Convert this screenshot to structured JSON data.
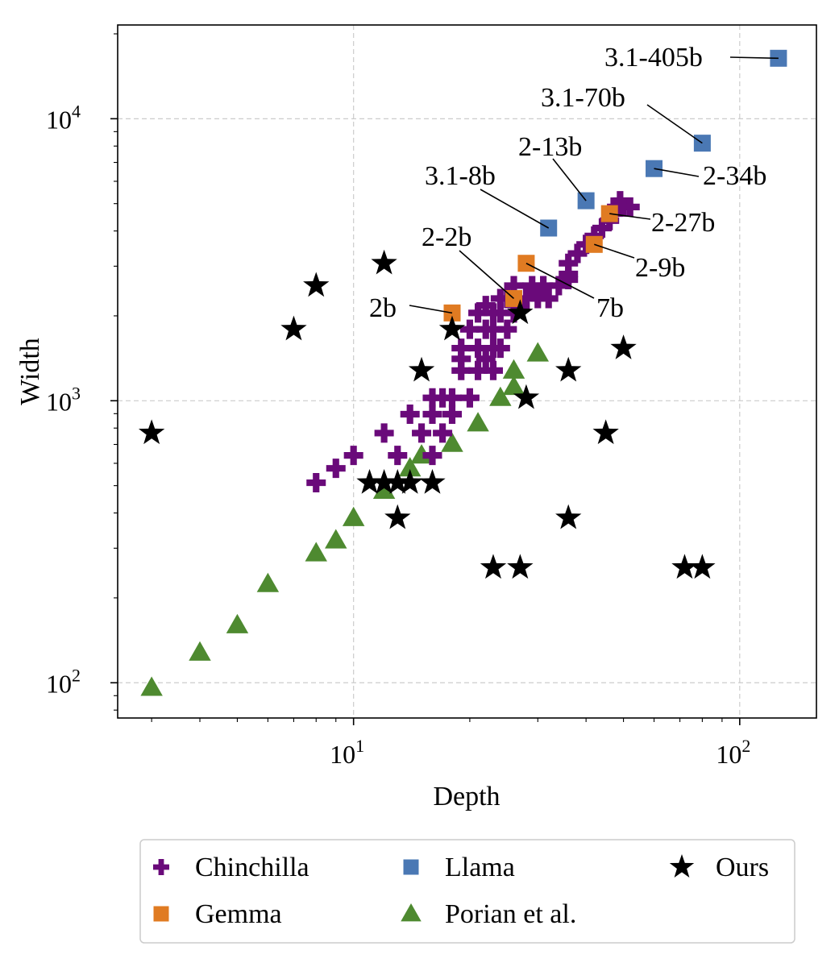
{
  "chart_data": {
    "type": "scatter",
    "xlabel": "Depth",
    "ylabel": "Width",
    "xscale": "log",
    "yscale": "log",
    "xlim": [
      2.45,
      158
    ],
    "ylim": [
      75,
      21500
    ],
    "x_ticks": [
      {
        "value": 10,
        "base": "10",
        "exp": "1"
      },
      {
        "value": 100,
        "base": "10",
        "exp": "2"
      }
    ],
    "y_ticks": [
      {
        "value": 100,
        "base": "10",
        "exp": "2"
      },
      {
        "value": 1000,
        "base": "10",
        "exp": "3"
      },
      {
        "value": 10000,
        "base": "10",
        "exp": "4"
      }
    ],
    "grid": true,
    "legend_position": "below",
    "series": [
      {
        "name": "Chinchilla",
        "color": "#6a0a7a",
        "marker": "plus",
        "points": [
          [
            8,
            512
          ],
          [
            9,
            576
          ],
          [
            10,
            640
          ],
          [
            12,
            768
          ],
          [
            13,
            640
          ],
          [
            14,
            896
          ],
          [
            15,
            768
          ],
          [
            16,
            1024
          ],
          [
            16,
            896
          ],
          [
            16,
            640
          ],
          [
            17,
            768
          ],
          [
            17,
            1024
          ],
          [
            18,
            896
          ],
          [
            18,
            1024
          ],
          [
            19,
            1280
          ],
          [
            19,
            1408
          ],
          [
            19,
            1536
          ],
          [
            20,
            1024
          ],
          [
            20,
            1792
          ],
          [
            21,
            1280
          ],
          [
            21,
            1536
          ],
          [
            21,
            2048
          ],
          [
            22,
            1408
          ],
          [
            22,
            1792
          ],
          [
            22,
            2176
          ],
          [
            23,
            1280
          ],
          [
            23,
            1536
          ],
          [
            23,
            1792
          ],
          [
            23,
            2048
          ],
          [
            24,
            1536
          ],
          [
            24,
            2048
          ],
          [
            24,
            2304
          ],
          [
            25,
            1792
          ],
          [
            25,
            2304
          ],
          [
            26,
            2048
          ],
          [
            26,
            2560
          ],
          [
            27,
            2176
          ],
          [
            28,
            2304
          ],
          [
            29,
            2560
          ],
          [
            30,
            2304
          ],
          [
            31,
            2560
          ],
          [
            32,
            2304
          ],
          [
            34,
            2560
          ],
          [
            36,
            2688
          ],
          [
            36,
            2816
          ],
          [
            36,
            3072
          ],
          [
            38,
            3328
          ],
          [
            40,
            3584
          ],
          [
            42,
            3840
          ],
          [
            44,
            4096
          ],
          [
            46,
            4352
          ],
          [
            47,
            4608
          ],
          [
            48,
            4864
          ],
          [
            49,
            5120
          ],
          [
            50,
            4864
          ],
          [
            52,
            4864
          ]
        ]
      },
      {
        "name": "Gemma",
        "color": "#e07b22",
        "marker": "square",
        "points": [
          {
            "x": 18,
            "y": 2048,
            "label": "2b"
          },
          {
            "x": 26,
            "y": 2304,
            "label": "2-2b"
          },
          {
            "x": 28,
            "y": 3072,
            "label": "7b"
          },
          {
            "x": 42,
            "y": 3584,
            "label": "2-9b"
          },
          {
            "x": 46,
            "y": 4608,
            "label": "2-27b"
          }
        ]
      },
      {
        "name": "Llama",
        "color": "#4a78b4",
        "marker": "square",
        "points": [
          {
            "x": 32,
            "y": 4096,
            "label": "3.1-8b"
          },
          {
            "x": 40,
            "y": 5120,
            "label": "2-13b"
          },
          {
            "x": 60,
            "y": 6656,
            "label": "2-34b"
          },
          {
            "x": 80,
            "y": 8192,
            "label": "3.1-70b"
          },
          {
            "x": 126,
            "y": 16384,
            "label": "3.1-405b"
          }
        ]
      },
      {
        "name": "Porian et al.",
        "color": "#4e8a30",
        "marker": "triangle",
        "points": [
          [
            3,
            96
          ],
          [
            4,
            128
          ],
          [
            5,
            160
          ],
          [
            6,
            224
          ],
          [
            8,
            288
          ],
          [
            9,
            320
          ],
          [
            10,
            384
          ],
          [
            12,
            480
          ],
          [
            14,
            576
          ],
          [
            15,
            640
          ],
          [
            18,
            704
          ],
          [
            21,
            832
          ],
          [
            24,
            1024
          ],
          [
            26,
            1120
          ],
          [
            26,
            1280
          ],
          [
            30,
            1472
          ]
        ]
      },
      {
        "name": "Ours",
        "color": "#000000",
        "marker": "star",
        "points": [
          [
            3,
            768
          ],
          [
            7,
            1792
          ],
          [
            8,
            2560
          ],
          [
            12,
            3072
          ],
          [
            11,
            512
          ],
          [
            12,
            512
          ],
          [
            13,
            512
          ],
          [
            14,
            512
          ],
          [
            16,
            512
          ],
          [
            13,
            384
          ],
          [
            15,
            1280
          ],
          [
            18,
            1792
          ],
          [
            23,
            256
          ],
          [
            27,
            256
          ],
          [
            27,
            2048
          ],
          [
            28,
            1024
          ],
          [
            36,
            1280
          ],
          [
            36,
            384
          ],
          [
            45,
            768
          ],
          [
            50,
            1536
          ],
          [
            72,
            256
          ],
          [
            80,
            256
          ]
        ]
      }
    ]
  }
}
